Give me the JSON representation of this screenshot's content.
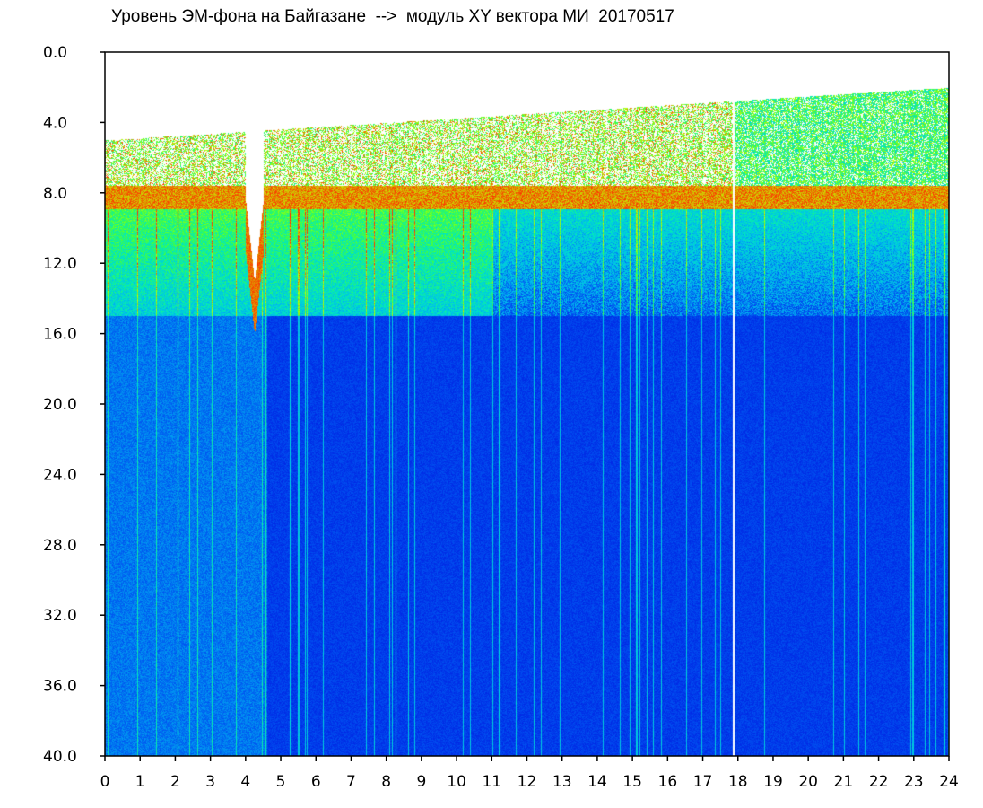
{
  "chart_data": {
    "type": "heatmap",
    "title": "Уровень ЭМ-фона на Байгазане  -->  модуль XY вектора МИ  20170517",
    "xlabel": "",
    "ylabel": "",
    "xlim": [
      0,
      24
    ],
    "ylim": [
      0.0,
      40.0
    ],
    "y_inverted": true,
    "x_ticks": [
      "0",
      "1",
      "2",
      "3",
      "4",
      "5",
      "6",
      "7",
      "8",
      "9",
      "10",
      "11",
      "12",
      "13",
      "14",
      "15",
      "16",
      "17",
      "18",
      "19",
      "20",
      "21",
      "22",
      "23",
      "24"
    ],
    "y_ticks": [
      "0.0",
      "4.0",
      "8.0",
      "12.0",
      "16.0",
      "20.0",
      "24.0",
      "28.0",
      "32.0",
      "36.0",
      "40.0"
    ],
    "colorscale": [
      "#0018e0",
      "#0050f0",
      "#00b8f0",
      "#00e8c0",
      "#40ff40",
      "#c0ff00",
      "#ff3000"
    ],
    "background_level_color": "#0018d8",
    "features": {
      "lower_band_edge_y": 8.3,
      "midband_edge_y": 15.0,
      "upper_band_top_y_start": 5.0,
      "upper_band_top_y_end": 2.0,
      "gap_x": [
        4.0,
        4.5
      ],
      "gap_bottom_y": 13.0,
      "white_line_x": 17.85
    },
    "grid": false,
    "legend": "none"
  }
}
